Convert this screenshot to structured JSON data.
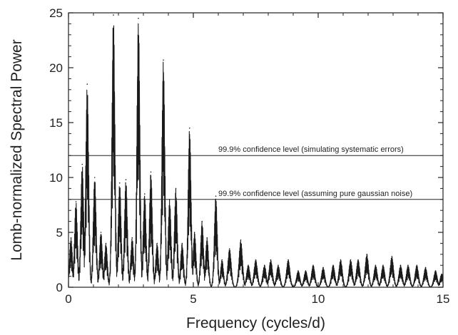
{
  "chart_data": {
    "type": "line",
    "title": "",
    "xlabel": "Frequency (cycles/d)",
    "ylabel": "Lomb-normalized Spectral Power",
    "xlim": [
      0,
      15
    ],
    "ylim": [
      0,
      25
    ],
    "x_ticks": [
      0,
      5,
      10,
      15
    ],
    "y_ticks": [
      0,
      5,
      10,
      15,
      20,
      25
    ],
    "x_tick_labels": [
      "0",
      "5",
      "10",
      "15"
    ],
    "y_tick_labels": [
      "0",
      "5",
      "10",
      "15",
      "20",
      "25"
    ],
    "grid": false,
    "series": [
      {
        "color": "#1a1a1a",
        "peaks": [
          {
            "x": 0.1,
            "y": 4.5
          },
          {
            "x": 0.3,
            "y": 7.8
          },
          {
            "x": 0.55,
            "y": 11.2
          },
          {
            "x": 0.75,
            "y": 18.5
          },
          {
            "x": 1.05,
            "y": 10.0
          },
          {
            "x": 1.3,
            "y": 5.0
          },
          {
            "x": 1.5,
            "y": 4.0
          },
          {
            "x": 1.8,
            "y": 24.8
          },
          {
            "x": 2.05,
            "y": 9.5
          },
          {
            "x": 2.3,
            "y": 9.8
          },
          {
            "x": 2.55,
            "y": 4.5
          },
          {
            "x": 2.8,
            "y": 24.5
          },
          {
            "x": 3.05,
            "y": 8.5
          },
          {
            "x": 3.3,
            "y": 10.5
          },
          {
            "x": 3.55,
            "y": 4.0
          },
          {
            "x": 3.8,
            "y": 20.7
          },
          {
            "x": 4.05,
            "y": 8.0
          },
          {
            "x": 4.3,
            "y": 9.0
          },
          {
            "x": 4.55,
            "y": 4.0
          },
          {
            "x": 4.85,
            "y": 14.5
          },
          {
            "x": 5.05,
            "y": 5.0
          },
          {
            "x": 5.35,
            "y": 6.0
          },
          {
            "x": 5.55,
            "y": 4.5
          },
          {
            "x": 5.9,
            "y": 8.3
          },
          {
            "x": 6.15,
            "y": 2.5
          },
          {
            "x": 6.45,
            "y": 3.5
          },
          {
            "x": 6.9,
            "y": 4.3
          },
          {
            "x": 7.2,
            "y": 2.0
          },
          {
            "x": 7.5,
            "y": 2.5
          },
          {
            "x": 7.85,
            "y": 2.0
          },
          {
            "x": 8.1,
            "y": 2.5
          },
          {
            "x": 8.4,
            "y": 2.0
          },
          {
            "x": 8.8,
            "y": 2.5
          },
          {
            "x": 9.2,
            "y": 1.5
          },
          {
            "x": 9.5,
            "y": 1.5
          },
          {
            "x": 9.8,
            "y": 2.0
          },
          {
            "x": 10.2,
            "y": 1.8
          },
          {
            "x": 10.6,
            "y": 2.0
          },
          {
            "x": 10.9,
            "y": 2.5
          },
          {
            "x": 11.3,
            "y": 2.5
          },
          {
            "x": 11.6,
            "y": 2.5
          },
          {
            "x": 11.95,
            "y": 3.0
          },
          {
            "x": 12.3,
            "y": 2.0
          },
          {
            "x": 12.6,
            "y": 2.0
          },
          {
            "x": 12.95,
            "y": 2.8
          },
          {
            "x": 13.3,
            "y": 2.0
          },
          {
            "x": 13.6,
            "y": 2.0
          },
          {
            "x": 13.95,
            "y": 2.0
          },
          {
            "x": 14.3,
            "y": 1.8
          },
          {
            "x": 14.7,
            "y": 1.5
          },
          {
            "x": 14.95,
            "y": 1.2
          }
        ]
      }
    ],
    "reference_lines": [
      {
        "y": 12.0,
        "label": "99.9% confidence level (simulating systematic errors)",
        "label_x": 6.0
      },
      {
        "y": 8.0,
        "label": "99.9% confidence level (assuming pure gaussian noise)",
        "label_x": 6.0
      }
    ],
    "style": {
      "line_color": "#1a1a1a",
      "axis_color": "#222222",
      "text_color": "#222222"
    }
  }
}
